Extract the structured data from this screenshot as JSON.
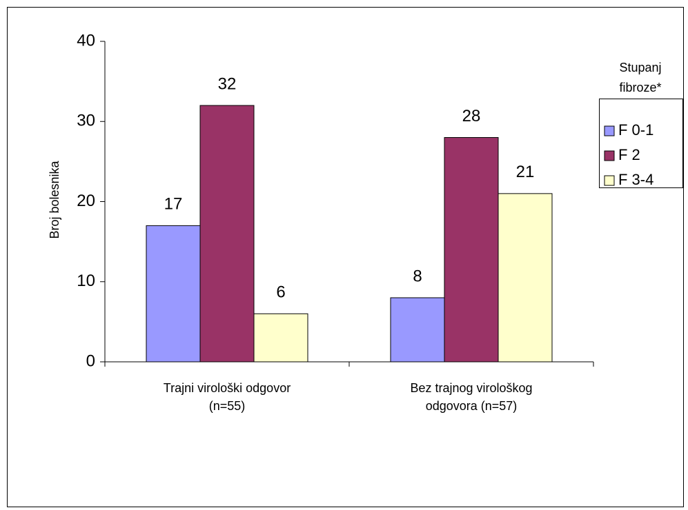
{
  "chart_data": {
    "type": "bar",
    "categories": [
      [
        "Trajni virološki odgovor",
        "(n=55)"
      ],
      [
        "Bez trajnog virološkog",
        "odgovora (n=57)"
      ]
    ],
    "series": [
      {
        "name": "F 0-1",
        "color": "#9999ff",
        "values": [
          17,
          8
        ]
      },
      {
        "name": "F 2",
        "color": "#993366",
        "values": [
          32,
          28
        ]
      },
      {
        "name": "F 3-4",
        "color": "#ffffcc",
        "values": [
          6,
          21
        ]
      }
    ],
    "y_label": "Broj bolesnika",
    "legend_title": [
      "Stupanj",
      "fibroze*"
    ],
    "ylim": [
      0,
      40
    ],
    "yticks": [
      0,
      10,
      20,
      30,
      40
    ],
    "legend": "right",
    "grid": false
  }
}
